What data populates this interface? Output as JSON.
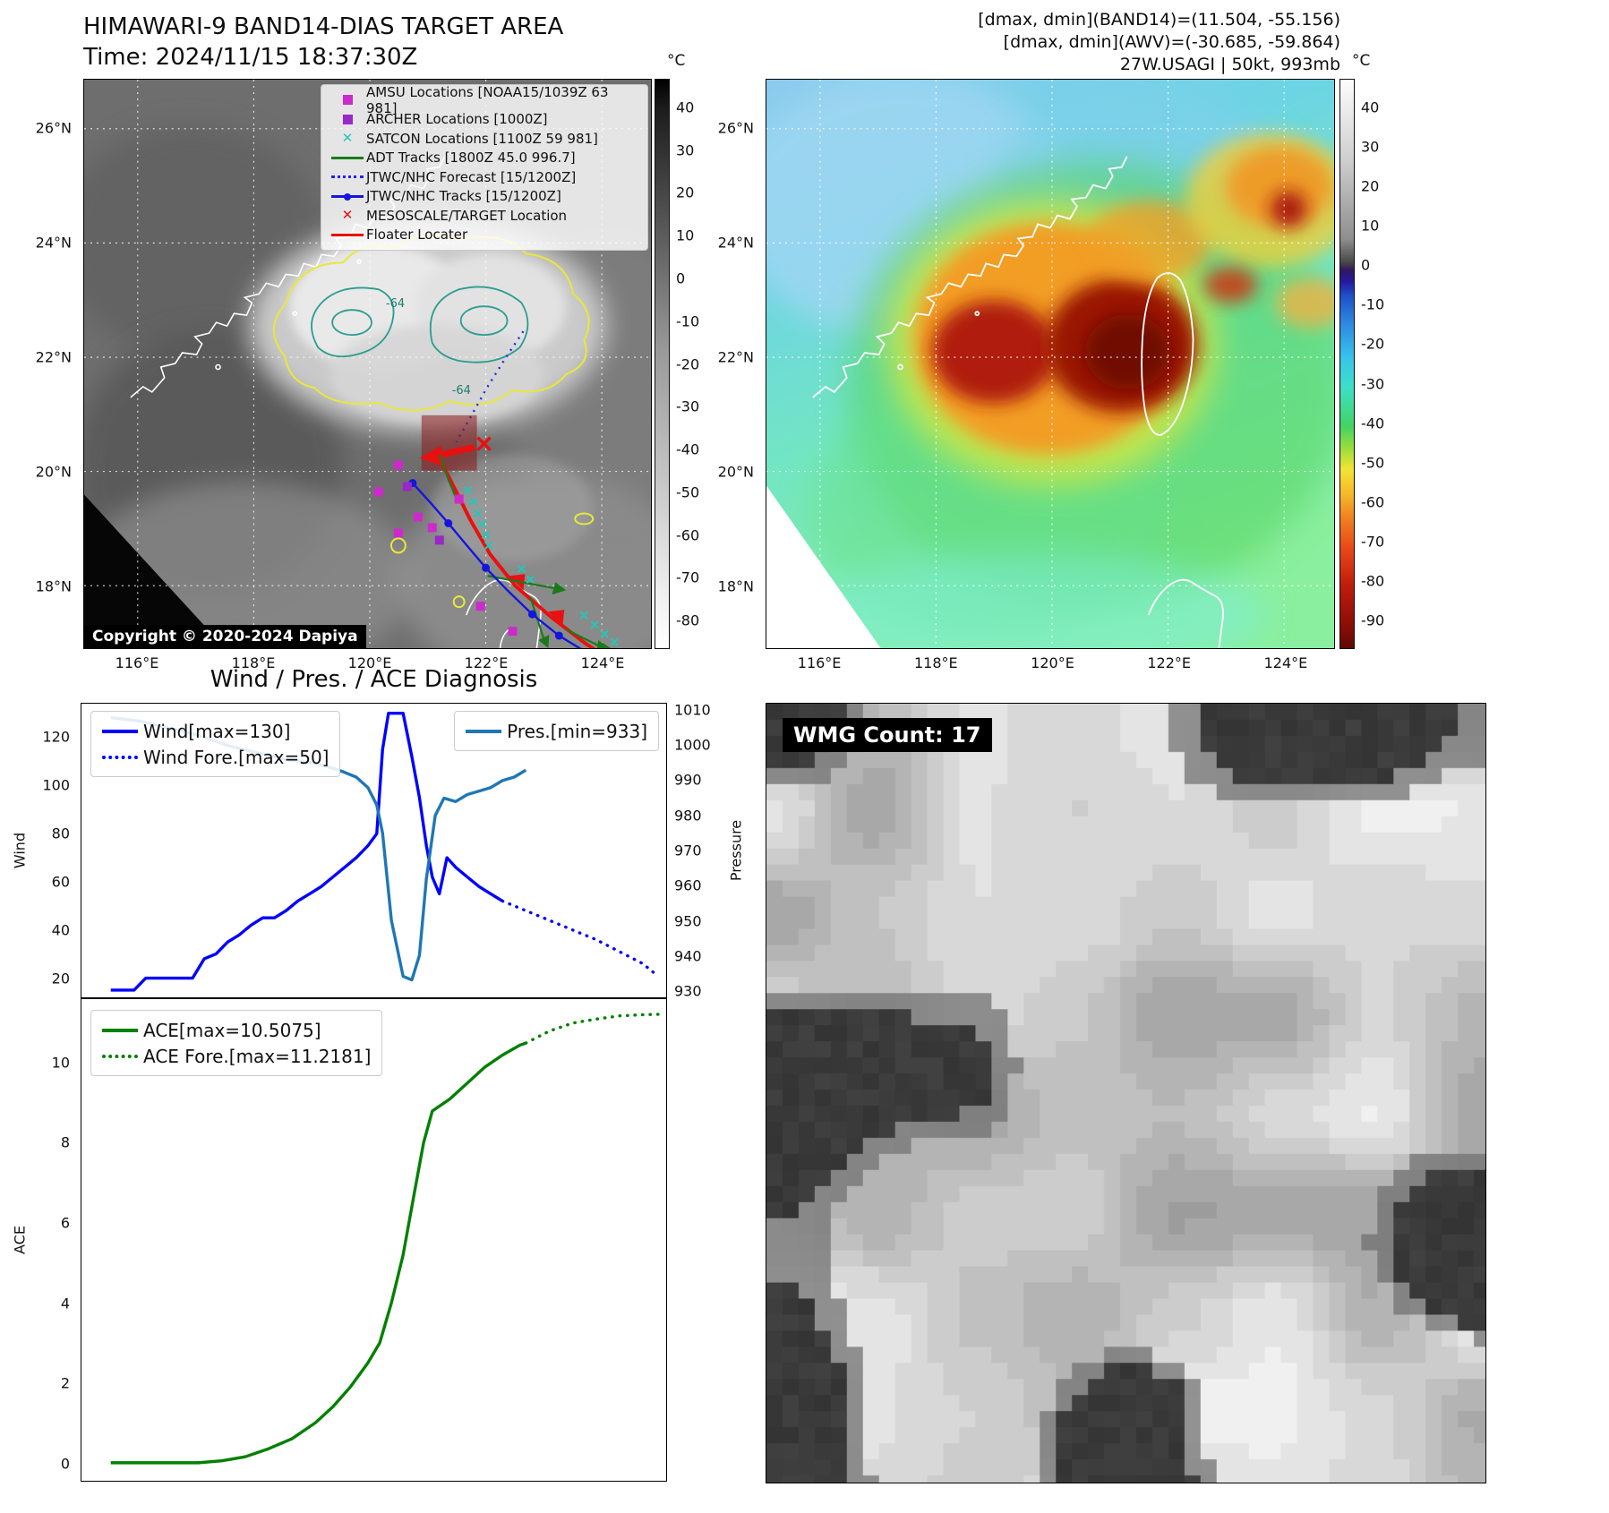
{
  "header": {
    "title": "HIMAWARI-9 BAND14-DIAS TARGET AREA",
    "time": "Time: 2024/11/15 18:37:30Z",
    "right_lines": [
      "[dmax, dmin](BAND14)=(11.504, -55.156)",
      "[dmax, dmin](AWV)=(-30.685, -59.864)",
      "27W.USAGI | 50kt, 993mb"
    ]
  },
  "band14_panel": {
    "legend": [
      {
        "label": "AMSU Locations [NOAA15/1039Z 63 981]",
        "marker": "square",
        "color": "#cc2acc"
      },
      {
        "label": "ARCHER Locations [1000Z]",
        "marker": "square",
        "color": "#9a28c8"
      },
      {
        "label": "SATCON Locations [1100Z 59 981]",
        "marker": "x",
        "color": "#26c6b8"
      },
      {
        "label": "ADT Tracks [1800Z 45.0 996.7]",
        "marker": "line",
        "color": "#1a7a1a"
      },
      {
        "label": "JTWC/NHC Forecast [15/1200Z]",
        "marker": "dotted-line",
        "color": "#2222ee"
      },
      {
        "label": "JTWC/NHC Tracks [15/1200Z]",
        "marker": "line-dot",
        "color": "#1515dd"
      },
      {
        "label": "MESOSCALE/TARGET Location",
        "marker": "x",
        "color": "#e81010"
      },
      {
        "label": "Floater Locater",
        "marker": "line",
        "color": "#e81010"
      }
    ],
    "x_ticks": [
      "116°E",
      "118°E",
      "120°E",
      "122°E",
      "124°E"
    ],
    "y_ticks": [
      "26°N",
      "24°N",
      "22°N",
      "20°N",
      "18°N"
    ],
    "colorbar": {
      "unit": "°C",
      "ticks": [
        40,
        30,
        20,
        10,
        0,
        -10,
        -20,
        -30,
        -40,
        -50,
        -60,
        -70,
        -80
      ]
    },
    "contour_label": "-64",
    "copyright": "Copyright © 2020-2024 Dapiya"
  },
  "awv_panel": {
    "x_ticks": [
      "116°E",
      "118°E",
      "120°E",
      "122°E",
      "124°E"
    ],
    "y_ticks": [
      "26°N",
      "24°N",
      "22°N",
      "20°N",
      "18°N"
    ],
    "colorbar": {
      "unit": "°C",
      "ticks": [
        40,
        30,
        20,
        10,
        0,
        -10,
        -20,
        -30,
        -40,
        -50,
        -60,
        -70,
        -80,
        -90
      ]
    }
  },
  "wmg_panel": {
    "label": "WMG Count: 17"
  },
  "chart_data": [
    {
      "type": "line",
      "title": "Wind / Pres. / ACE Diagnosis",
      "ylabel": "Wind",
      "ylabel_right": "Pressure",
      "ylim": [
        12,
        134
      ],
      "ylim_right": [
        928,
        1012
      ],
      "yticks": [
        20,
        40,
        60,
        80,
        100,
        120
      ],
      "yticks_right": [
        930,
        940,
        950,
        960,
        970,
        980,
        990,
        1000,
        1010
      ],
      "xlabel": "",
      "x_axis_note": "time steps, no tick labels shown; x normalized 0-1",
      "grid": false,
      "legend_position": "upper-left and upper-right",
      "series": [
        {
          "name": "Wind[max=130]",
          "axis": "left",
          "style": "solid",
          "color": "#0000ff",
          "x": [
            0.05,
            0.09,
            0.11,
            0.13,
            0.16,
            0.19,
            0.21,
            0.23,
            0.25,
            0.27,
            0.29,
            0.31,
            0.33,
            0.35,
            0.37,
            0.39,
            0.41,
            0.43,
            0.45,
            0.47,
            0.49,
            0.505,
            0.515,
            0.525,
            0.55,
            0.565,
            0.578,
            0.59,
            0.6,
            0.612,
            0.625,
            0.64,
            0.66,
            0.68,
            0.7,
            0.72
          ],
          "values": [
            15,
            15,
            20,
            20,
            20,
            20,
            28,
            30,
            35,
            38,
            42,
            45,
            45,
            48,
            52,
            55,
            58,
            62,
            66,
            70,
            75,
            80,
            115,
            130,
            130,
            112,
            95,
            75,
            62,
            55,
            70,
            66,
            62,
            58,
            55,
            52
          ]
        },
        {
          "name": "Wind Fore.[max=50]",
          "axis": "left",
          "style": "dotted",
          "color": "#0000ff",
          "x": [
            0.72,
            0.76,
            0.8,
            0.84,
            0.88,
            0.92,
            0.96,
            0.985
          ],
          "values": [
            52,
            48,
            44,
            40,
            36,
            31,
            26,
            21
          ]
        },
        {
          "name": "Pres.[min=933]",
          "axis": "right",
          "style": "solid",
          "color": "#1f77b4",
          "x": [
            0.05,
            0.1,
            0.15,
            0.2,
            0.25,
            0.3,
            0.35,
            0.4,
            0.44,
            0.47,
            0.49,
            0.505,
            0.515,
            0.53,
            0.55,
            0.565,
            0.578,
            0.59,
            0.605,
            0.62,
            0.64,
            0.66,
            0.68,
            0.7,
            0.72,
            0.74,
            0.76
          ],
          "values": [
            1008,
            1007,
            1005,
            1003,
            1000,
            998,
            996,
            995,
            993,
            991,
            988,
            983,
            975,
            950,
            934,
            933,
            940,
            962,
            980,
            985,
            984,
            986,
            987,
            988,
            990,
            991,
            993
          ]
        }
      ]
    },
    {
      "type": "line",
      "title": "",
      "ylabel": "ACE",
      "ylim": [
        -0.45,
        11.6
      ],
      "yticks": [
        0,
        2,
        4,
        6,
        8,
        10
      ],
      "grid": false,
      "legend_position": "upper-left",
      "series": [
        {
          "name": "ACE[max=10.5075]",
          "axis": "left",
          "style": "solid",
          "color": "#008000",
          "x": [
            0.05,
            0.1,
            0.15,
            0.2,
            0.24,
            0.28,
            0.32,
            0.36,
            0.4,
            0.43,
            0.46,
            0.49,
            0.51,
            0.53,
            0.55,
            0.57,
            0.585,
            0.6,
            0.63,
            0.66,
            0.69,
            0.72,
            0.75,
            0.76
          ],
          "values": [
            0,
            0,
            0,
            0,
            0.05,
            0.15,
            0.35,
            0.6,
            1.0,
            1.4,
            1.9,
            2.5,
            3.0,
            4.0,
            5.2,
            6.8,
            8.0,
            8.8,
            9.1,
            9.5,
            9.9,
            10.2,
            10.45,
            10.5
          ]
        },
        {
          "name": "ACE Fore.[max=11.2181]",
          "axis": "left",
          "style": "dotted",
          "color": "#008000",
          "x": [
            0.76,
            0.8,
            0.84,
            0.88,
            0.92,
            0.96,
            0.99
          ],
          "values": [
            10.5,
            10.8,
            11.0,
            11.1,
            11.18,
            11.21,
            11.22
          ]
        }
      ]
    }
  ]
}
